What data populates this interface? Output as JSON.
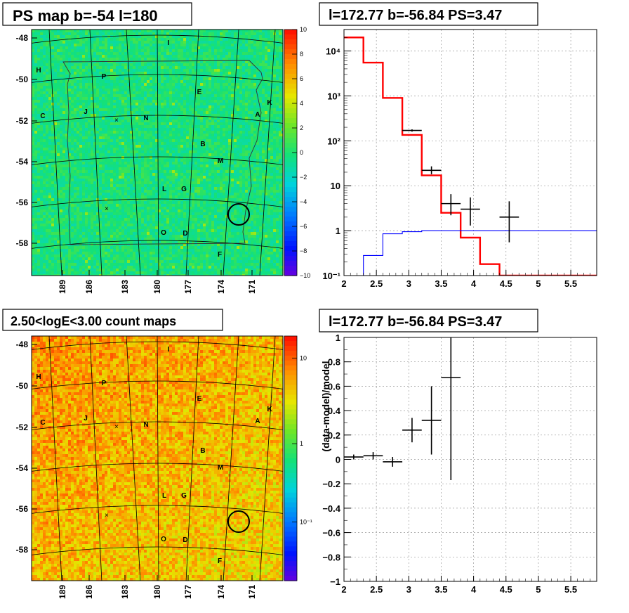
{
  "panels": {
    "map_top": {
      "title": "PS map b=-54 l=180",
      "x_ticks": [
        "189",
        "186",
        "183",
        "180",
        "177",
        "174",
        "171"
      ],
      "y_ticks": [
        "-48",
        "-50",
        "-52",
        "-54",
        "-56",
        "-58"
      ],
      "colorbar_ticks": [
        "10",
        "8",
        "6",
        "4",
        "2",
        "0",
        "−2",
        "−4",
        "−6",
        "−8",
        "−10"
      ],
      "colorbar_range": [
        -10,
        10
      ],
      "letters": [
        "I",
        "H",
        "P",
        "E",
        "K",
        "C",
        "J",
        "N",
        "A",
        "B",
        "M",
        "L",
        "G",
        "O",
        "D",
        "F"
      ]
    },
    "map_bottom": {
      "title": "2.50<logE<3.00 count maps",
      "x_ticks": [
        "189",
        "186",
        "183",
        "180",
        "177",
        "174",
        "171"
      ],
      "y_ticks": [
        "-48",
        "-50",
        "-52",
        "-54",
        "-56",
        "-58"
      ],
      "colorbar_ticks": [
        "10",
        "1",
        "10⁻¹"
      ],
      "colorbar_scale": "log",
      "letters": [
        "I",
        "H",
        "P",
        "E",
        "K",
        "C",
        "J",
        "N",
        "A",
        "B",
        "M",
        "L",
        "G",
        "O",
        "D",
        "F"
      ]
    },
    "spectrum": {
      "title": "l=172.77 b=-56.84 PS=3.47",
      "x_tick_labels": [
        "2",
        "2.5",
        "3",
        "3.5",
        "4",
        "4.5",
        "5",
        "5.5"
      ],
      "y_tick_labels": [
        "10⁻¹",
        "1",
        "10",
        "10²",
        "10³",
        "10⁴"
      ]
    },
    "residual": {
      "title": "l=172.77 b=-56.84 PS=3.47",
      "ylabel": "(data-model)/model",
      "x_tick_labels": [
        "2",
        "2.5",
        "3",
        "3.5",
        "4",
        "4.5",
        "5",
        "5.5"
      ],
      "y_tick_labels": [
        "1",
        "0.8",
        "0.6",
        "0.4",
        "0.2",
        "0",
        "−0.2",
        "−0.4",
        "−0.6",
        "−0.8",
        "−1"
      ]
    }
  },
  "chart_data": [
    {
      "type": "heatmap",
      "title": "PS map b=-54 l=180",
      "x_axis": "l",
      "y_axis": "b",
      "xlim": [
        191,
        168.5
      ],
      "ylim": [
        -59.5,
        -47.5
      ],
      "z_range": [
        -10,
        10
      ],
      "source_marker": {
        "l": 172.77,
        "b": -56.84
      }
    },
    {
      "type": "heatmap",
      "title": "2.50<logE<3.00 count maps",
      "x_axis": "l",
      "y_axis": "b",
      "xlim": [
        191,
        168.5
      ],
      "ylim": [
        -59.5,
        -47.5
      ],
      "z_scale": "log",
      "source_marker": {
        "l": 172.77,
        "b": -56.84
      }
    },
    {
      "type": "line",
      "title": "l=172.77 b=-56.84 PS=3.47",
      "xlim": [
        2,
        5.9
      ],
      "ylim": [
        0.1,
        30000
      ],
      "y_scale": "log",
      "grid": true,
      "bin_edges": [
        2.0,
        2.3,
        2.6,
        2.9,
        3.2,
        3.5,
        3.8,
        4.1,
        4.4,
        5.9
      ],
      "series": [
        {
          "values": [
            20000,
            5500,
            900,
            135,
            17,
            2.5,
            0.7,
            0.18,
            0.1
          ],
          "color": "#ff0000"
        },
        {
          "values": [
            0.09,
            0.28,
            0.85,
            0.95,
            1.0,
            1.0,
            1.0,
            1.0,
            1.0
          ],
          "color": "#0000ff"
        }
      ],
      "data_points": [
        {
          "x": 3.05,
          "y": 170,
          "xerr": 0.15,
          "ylo": 160,
          "yhi": 180
        },
        {
          "x": 3.35,
          "y": 22,
          "xerr": 0.15,
          "ylo": 18,
          "yhi": 27
        },
        {
          "x": 3.65,
          "y": 4,
          "xerr": 0.15,
          "ylo": 2.2,
          "yhi": 6.5
        },
        {
          "x": 3.95,
          "y": 3,
          "xerr": 0.15,
          "ylo": 1.3,
          "yhi": 5.5
        },
        {
          "x": 4.55,
          "y": 2,
          "xerr": 0.15,
          "ylo": 0.55,
          "yhi": 4.5
        }
      ]
    },
    {
      "type": "scatter",
      "title": "l=172.77 b=-56.84 PS=3.47",
      "ylabel": "(data-model)/model",
      "xlim": [
        2,
        5.9
      ],
      "ylim": [
        -1,
        1
      ],
      "grid": true,
      "data_points": [
        {
          "x": 2.15,
          "y": 0.02,
          "xerr": 0.15,
          "yerr": 0.02
        },
        {
          "x": 2.45,
          "y": 0.03,
          "xerr": 0.15,
          "yerr": 0.03
        },
        {
          "x": 2.75,
          "y": -0.02,
          "xerr": 0.15,
          "yerr": 0.04
        },
        {
          "x": 3.05,
          "y": 0.24,
          "xerr": 0.15,
          "yerr": 0.1
        },
        {
          "x": 3.35,
          "y": 0.32,
          "xerr": 0.15,
          "yerr": 0.28
        },
        {
          "x": 3.65,
          "y": 0.67,
          "xerr": 0.15,
          "yerr": 0.84
        }
      ]
    }
  ]
}
